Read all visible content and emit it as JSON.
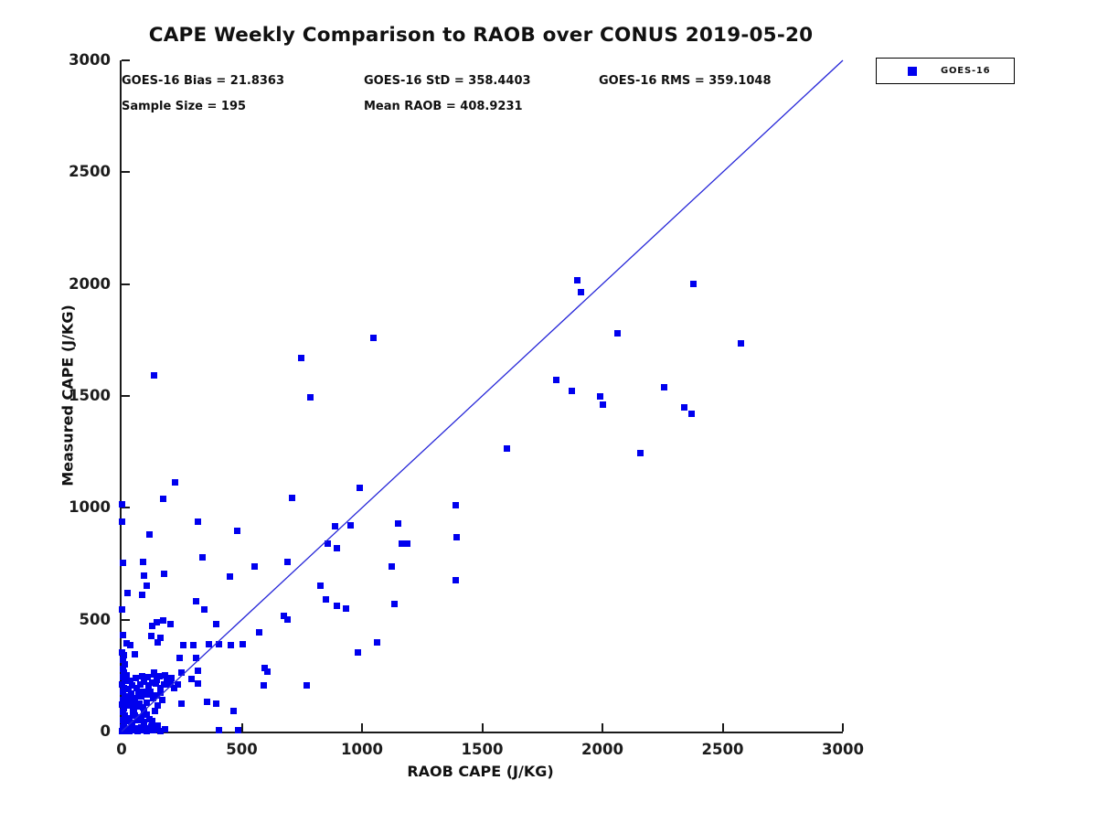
{
  "title": "CAPE Weekly Comparison to RAOB over CONUS 2019-05-20",
  "stats": {
    "bias": "GOES-16 Bias = 21.8363",
    "std": "GOES-16 StD = 358.4403",
    "rms": "GOES-16 RMS = 359.1048",
    "sample_size": "Sample Size = 195",
    "mean_raob": "Mean RAOB = 408.9231"
  },
  "legend": {
    "position": "outside-top-right",
    "entries": [
      {
        "label": "GOES-16",
        "marker": "square",
        "marker_color": "#0000ee"
      }
    ]
  },
  "colors": {
    "marker": "#0000ee",
    "reference_line": "#2626d8",
    "axis": "#1a1a1a",
    "text": "#111111",
    "background": "#ffffff"
  },
  "chart_data": {
    "type": "scatter",
    "title": "CAPE Weekly Comparison to RAOB over CONUS 2019-05-20",
    "xlabel": "RAOB CAPE (J/KG)",
    "ylabel": "Measured CAPE (J/KG)",
    "xlim": [
      0,
      3000
    ],
    "ylim": [
      0,
      3000
    ],
    "xticks": [
      0,
      500,
      1000,
      1500,
      2000,
      2500,
      3000
    ],
    "yticks": [
      0,
      500,
      1000,
      1500,
      2000,
      2500,
      3000
    ],
    "grid": false,
    "legend_position": "outside-top-right",
    "reference_line": {
      "from": [
        0,
        0
      ],
      "to": [
        3000,
        3000
      ],
      "color": "#2626d8",
      "style": "solid",
      "meaning": "1:1 line"
    },
    "annotations": [
      "GOES-16 Bias = 21.8363",
      "GOES-16 StD = 358.4403",
      "GOES-16 RMS = 359.1048",
      "Sample Size = 195",
      "Mean RAOB = 408.9231"
    ],
    "series": [
      {
        "name": "GOES-16",
        "marker": "square",
        "color": "#0000ee",
        "points": [
          [
            1048,
            1760
          ],
          [
            1897,
            2017
          ],
          [
            1912,
            1965
          ],
          [
            2380,
            2000
          ],
          [
            2062,
            1778
          ],
          [
            2575,
            1733
          ],
          [
            1808,
            1573
          ],
          [
            1872,
            1522
          ],
          [
            1990,
            1500
          ],
          [
            2000,
            1462
          ],
          [
            2255,
            1540
          ],
          [
            2340,
            1447
          ],
          [
            2370,
            1420
          ],
          [
            1603,
            1267
          ],
          [
            2157,
            1246
          ],
          [
            1390,
            1011
          ],
          [
            1150,
            928
          ],
          [
            1165,
            841
          ],
          [
            1190,
            841
          ],
          [
            1395,
            868
          ],
          [
            1122,
            738
          ],
          [
            1388,
            677
          ],
          [
            1134,
            570
          ],
          [
            1061,
            398
          ],
          [
            991,
            1090
          ],
          [
            982,
            354
          ],
          [
            136,
            1591
          ],
          [
            747,
            1669
          ],
          [
            785,
            1492
          ],
          [
            222,
            1114
          ],
          [
            2,
            1015
          ],
          [
            174,
            1040
          ],
          [
            711,
            1043
          ],
          [
            0,
            937
          ],
          [
            319,
            940
          ],
          [
            481,
            897
          ],
          [
            887,
            917
          ],
          [
            953,
            923
          ],
          [
            117,
            882
          ],
          [
            858,
            838
          ],
          [
            896,
            820
          ],
          [
            335,
            779
          ],
          [
            5,
            756
          ],
          [
            89,
            760
          ],
          [
            689,
            759
          ],
          [
            554,
            738
          ],
          [
            95,
            695
          ],
          [
            178,
            705
          ],
          [
            452,
            692
          ],
          [
            826,
            650
          ],
          [
            23,
            620
          ],
          [
            85,
            609
          ],
          [
            105,
            652
          ],
          [
            849,
            590
          ],
          [
            894,
            562
          ],
          [
            934,
            549
          ],
          [
            308,
            582
          ],
          [
            345,
            544
          ],
          [
            2,
            546
          ],
          [
            394,
            480
          ],
          [
            674,
            518
          ],
          [
            689,
            502
          ],
          [
            573,
            443
          ],
          [
            5,
            430
          ],
          [
            127,
            474
          ],
          [
            148,
            487
          ],
          [
            174,
            497
          ],
          [
            205,
            479
          ],
          [
            125,
            427
          ],
          [
            150,
            400
          ],
          [
            20,
            396
          ],
          [
            35,
            385
          ],
          [
            258,
            385
          ],
          [
            297,
            387
          ],
          [
            365,
            390
          ],
          [
            405,
            390
          ],
          [
            455,
            387
          ],
          [
            505,
            391
          ],
          [
            311,
            328
          ],
          [
            596,
            286
          ],
          [
            605,
            269
          ],
          [
            136,
            262
          ],
          [
            249,
            262
          ],
          [
            316,
            270
          ],
          [
            319,
            215
          ],
          [
            290,
            235
          ],
          [
            592,
            207
          ],
          [
            769,
            207
          ],
          [
            142,
            214
          ],
          [
            250,
            126
          ],
          [
            357,
            134
          ],
          [
            395,
            126
          ],
          [
            465,
            93
          ],
          [
            406,
            7
          ],
          [
            484,
            7
          ],
          [
            56,
            345
          ],
          [
            241,
            330
          ],
          [
            160,
            420
          ],
          [
            3,
            355
          ],
          [
            10,
            340
          ],
          [
            5,
            320
          ],
          [
            12,
            300
          ],
          [
            4,
            282
          ],
          [
            11,
            263
          ],
          [
            6,
            245
          ],
          [
            13,
            228
          ],
          [
            3,
            210
          ],
          [
            9,
            193
          ],
          [
            5,
            176
          ],
          [
            12,
            158
          ],
          [
            7,
            140
          ],
          [
            3,
            122
          ],
          [
            10,
            105
          ],
          [
            6,
            88
          ],
          [
            13,
            70
          ],
          [
            4,
            52
          ],
          [
            9,
            36
          ],
          [
            5,
            20
          ],
          [
            11,
            8
          ],
          [
            2,
            2
          ],
          [
            18,
            4
          ],
          [
            26,
            12
          ],
          [
            34,
            3
          ],
          [
            42,
            18
          ],
          [
            50,
            6
          ],
          [
            58,
            14
          ],
          [
            66,
            2
          ],
          [
            74,
            10
          ],
          [
            82,
            20
          ],
          [
            90,
            5
          ],
          [
            98,
            15
          ],
          [
            106,
            3
          ],
          [
            114,
            12
          ],
          [
            122,
            22
          ],
          [
            130,
            8
          ],
          [
            141,
            11
          ],
          [
            160,
            2
          ],
          [
            179,
            9
          ],
          [
            150,
            25
          ],
          [
            20,
            45
          ],
          [
            32,
            60
          ],
          [
            44,
            38
          ],
          [
            56,
            70
          ],
          [
            68,
            50
          ],
          [
            80,
            62
          ],
          [
            92,
            42
          ],
          [
            104,
            74
          ],
          [
            116,
            55
          ],
          [
            128,
            45
          ],
          [
            95,
            90
          ],
          [
            47,
            88
          ],
          [
            50,
            98
          ],
          [
            62,
            112
          ],
          [
            76,
            126
          ],
          [
            90,
            108
          ],
          [
            103,
            128
          ],
          [
            30,
            140
          ],
          [
            55,
            150
          ],
          [
            80,
            158
          ],
          [
            105,
            165
          ],
          [
            130,
            150
          ],
          [
            145,
            160
          ],
          [
            160,
            172
          ],
          [
            40,
            168
          ],
          [
            70,
            178
          ],
          [
            95,
            178
          ],
          [
            120,
            178
          ],
          [
            25,
            115
          ],
          [
            150,
            118
          ],
          [
            170,
            140
          ],
          [
            28,
            192
          ],
          [
            45,
            205
          ],
          [
            62,
            195
          ],
          [
            78,
            210
          ],
          [
            95,
            222
          ],
          [
            112,
            205
          ],
          [
            128,
            218
          ],
          [
            145,
            230
          ],
          [
            160,
            195
          ],
          [
            175,
            212
          ],
          [
            190,
            225
          ],
          [
            205,
            210
          ],
          [
            220,
            195
          ],
          [
            232,
            212
          ],
          [
            60,
            238
          ],
          [
            85,
            248
          ],
          [
            110,
            245
          ],
          [
            135,
            255
          ],
          [
            158,
            248
          ],
          [
            182,
            252
          ],
          [
            208,
            240
          ],
          [
            35,
            225
          ],
          [
            20,
            250
          ],
          [
            48,
            122
          ],
          [
            140,
            90
          ]
        ]
      }
    ]
  }
}
